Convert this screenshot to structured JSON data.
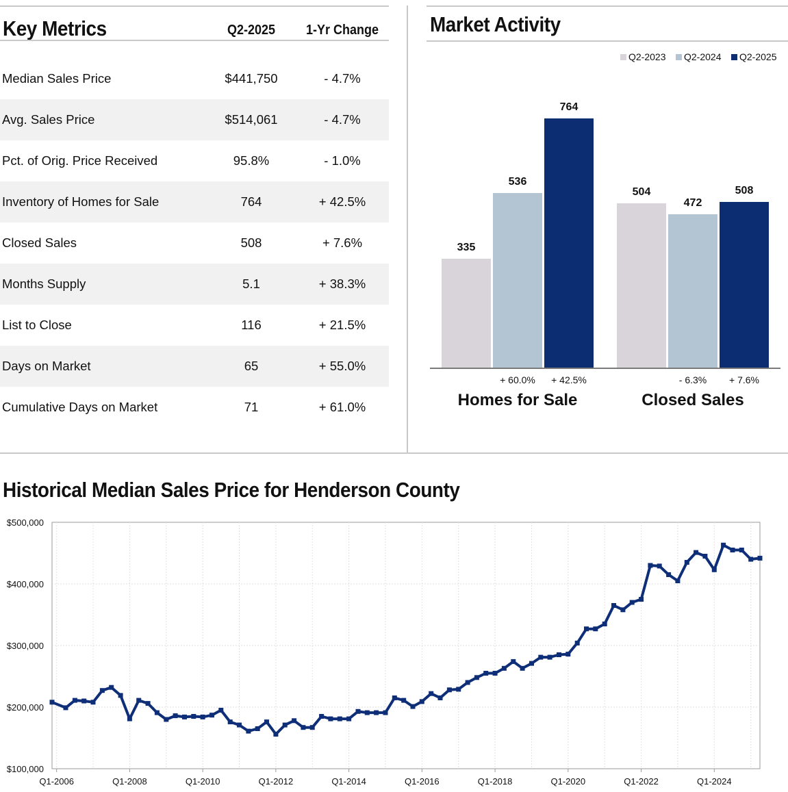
{
  "key_metrics": {
    "title": "Key Metrics",
    "col_period": "Q2-2025",
    "col_change": "1-Yr Change",
    "rows": [
      {
        "label": "Median Sales Price",
        "value": "$441,750",
        "change": "- 4.7%"
      },
      {
        "label": "Avg. Sales Price",
        "value": "$514,061",
        "change": "- 4.7%"
      },
      {
        "label": "Pct. of Orig. Price Received",
        "value": "95.8%",
        "change": "- 1.0%"
      },
      {
        "label": "Inventory of Homes for Sale",
        "value": "764",
        "change": "+ 42.5%"
      },
      {
        "label": "Closed Sales",
        "value": "508",
        "change": "+ 7.6%"
      },
      {
        "label": "Months Supply",
        "value": "5.1",
        "change": "+ 38.3%"
      },
      {
        "label": "List to Close",
        "value": "116",
        "change": "+ 21.5%"
      },
      {
        "label": "Days on Market",
        "value": "65",
        "change": "+ 55.0%"
      },
      {
        "label": "Cumulative Days on Market",
        "value": "71",
        "change": "+ 61.0%"
      }
    ]
  },
  "colors": {
    "q2_2023": "#d8d4d9",
    "q2_2024": "#b3c4d3",
    "q2_2025": "#0c2d72",
    "line": "#0e2e78",
    "divider": "#c8c8c8",
    "row_shade": "#f1f1f1"
  },
  "chart_data": [
    {
      "type": "bar",
      "title": "Market Activity",
      "legend": [
        "Q2-2023",
        "Q2-2024",
        "Q2-2025"
      ],
      "legend_position": "top-right",
      "categories": [
        "Homes for Sale",
        "Closed Sales"
      ],
      "series": [
        {
          "name": "Q2-2023",
          "values": [
            335,
            504
          ]
        },
        {
          "name": "Q2-2024",
          "values": [
            536,
            472
          ]
        },
        {
          "name": "Q2-2025",
          "values": [
            764,
            508
          ]
        }
      ],
      "changes": [
        [
          "",
          "+ 60.0%",
          "+ 42.5%"
        ],
        [
          "",
          "- 6.3%",
          "+ 7.6%"
        ]
      ],
      "ylim": [
        0,
        800
      ],
      "grid": false
    },
    {
      "type": "line",
      "title": "Historical Median Sales Price for Henderson County",
      "ylim": [
        100000,
        500000
      ],
      "yticks": [
        "$100,000",
        "$200,000",
        "$300,000",
        "$400,000",
        "$500,000"
      ],
      "xticks": [
        "Q1-2006",
        "Q1-2008",
        "Q1-2010",
        "Q1-2012",
        "Q1-2014",
        "Q1-2016",
        "Q1-2018",
        "Q1-2020",
        "Q1-2022",
        "Q1-2024"
      ],
      "grid": true,
      "x_start": "Q1-2006",
      "x_end": "Q2-2025",
      "values": [
        208000,
        199000,
        211000,
        210000,
        208000,
        227000,
        232000,
        219000,
        181000,
        211000,
        206000,
        191000,
        180000,
        186000,
        184000,
        185000,
        184000,
        187000,
        195000,
        176000,
        171000,
        161000,
        165000,
        176000,
        156000,
        171000,
        178000,
        167000,
        167000,
        185000,
        181000,
        181000,
        181000,
        193000,
        191000,
        191000,
        191000,
        215000,
        211000,
        201000,
        209000,
        222000,
        215000,
        228000,
        229000,
        240000,
        248000,
        255000,
        255000,
        263000,
        274000,
        263000,
        271000,
        281000,
        281000,
        285000,
        286000,
        304000,
        327000,
        327000,
        335000,
        365000,
        358000,
        370000,
        375000,
        430000,
        429000,
        415000,
        405000,
        435000,
        451000,
        445000,
        423000,
        463000,
        455000,
        455000,
        440000,
        441750
      ]
    }
  ]
}
